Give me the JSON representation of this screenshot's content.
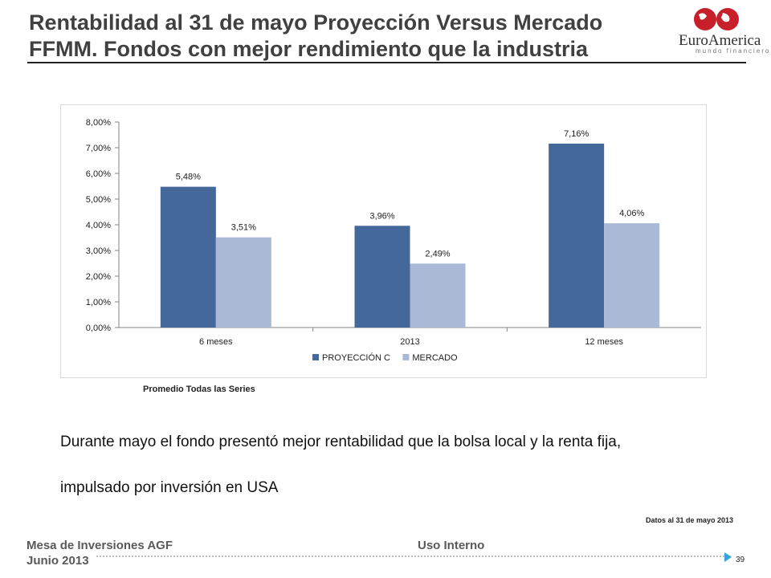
{
  "slide": {
    "title": "Rentabilidad al 31 de mayo Proyección Versus  Mercado FFMM. Fondos con mejor rendimiento que la industria",
    "logo": {
      "name": "EuroAmerica",
      "tagline": "mundo financiero"
    },
    "chart_caption": "Promedio Todas las Series",
    "body_line1": "Durante mayo el fondo presentó mejor rentabilidad que la bolsa local y la renta fija,",
    "body_line2": "impulsado por inversión en USA",
    "date_note": "Datos al 31 de mayo 2013",
    "footer_left1": "Mesa de Inversiones AGF",
    "footer_left2": "Junio 2013",
    "footer_mid": "Uso Interno",
    "page_number": "39"
  },
  "colors": {
    "series1": "#44689a",
    "series2": "#a9b9d6",
    "logo_red": "#c8202a",
    "footer_arrow": "#36a3dc"
  },
  "chart_data": {
    "type": "bar",
    "title": "",
    "xlabel": "",
    "ylabel": "",
    "categories": [
      "6 meses",
      "2013",
      "12 meses"
    ],
    "series": [
      {
        "name": "PROYECCIÓN C",
        "values": [
          5.48,
          3.96,
          7.16
        ],
        "labels": [
          "5,48%",
          "3,96%",
          "7,16%"
        ]
      },
      {
        "name": "MERCADO",
        "values": [
          3.51,
          2.49,
          4.06
        ],
        "labels": [
          "3,51%",
          "2,49%",
          "4,06%"
        ]
      }
    ],
    "ylim": [
      0,
      8
    ],
    "yticks": [
      "0,00%",
      "1,00%",
      "2,00%",
      "3,00%",
      "4,00%",
      "5,00%",
      "6,00%",
      "7,00%",
      "8,00%"
    ],
    "grid": false,
    "legend_position": "bottom"
  }
}
